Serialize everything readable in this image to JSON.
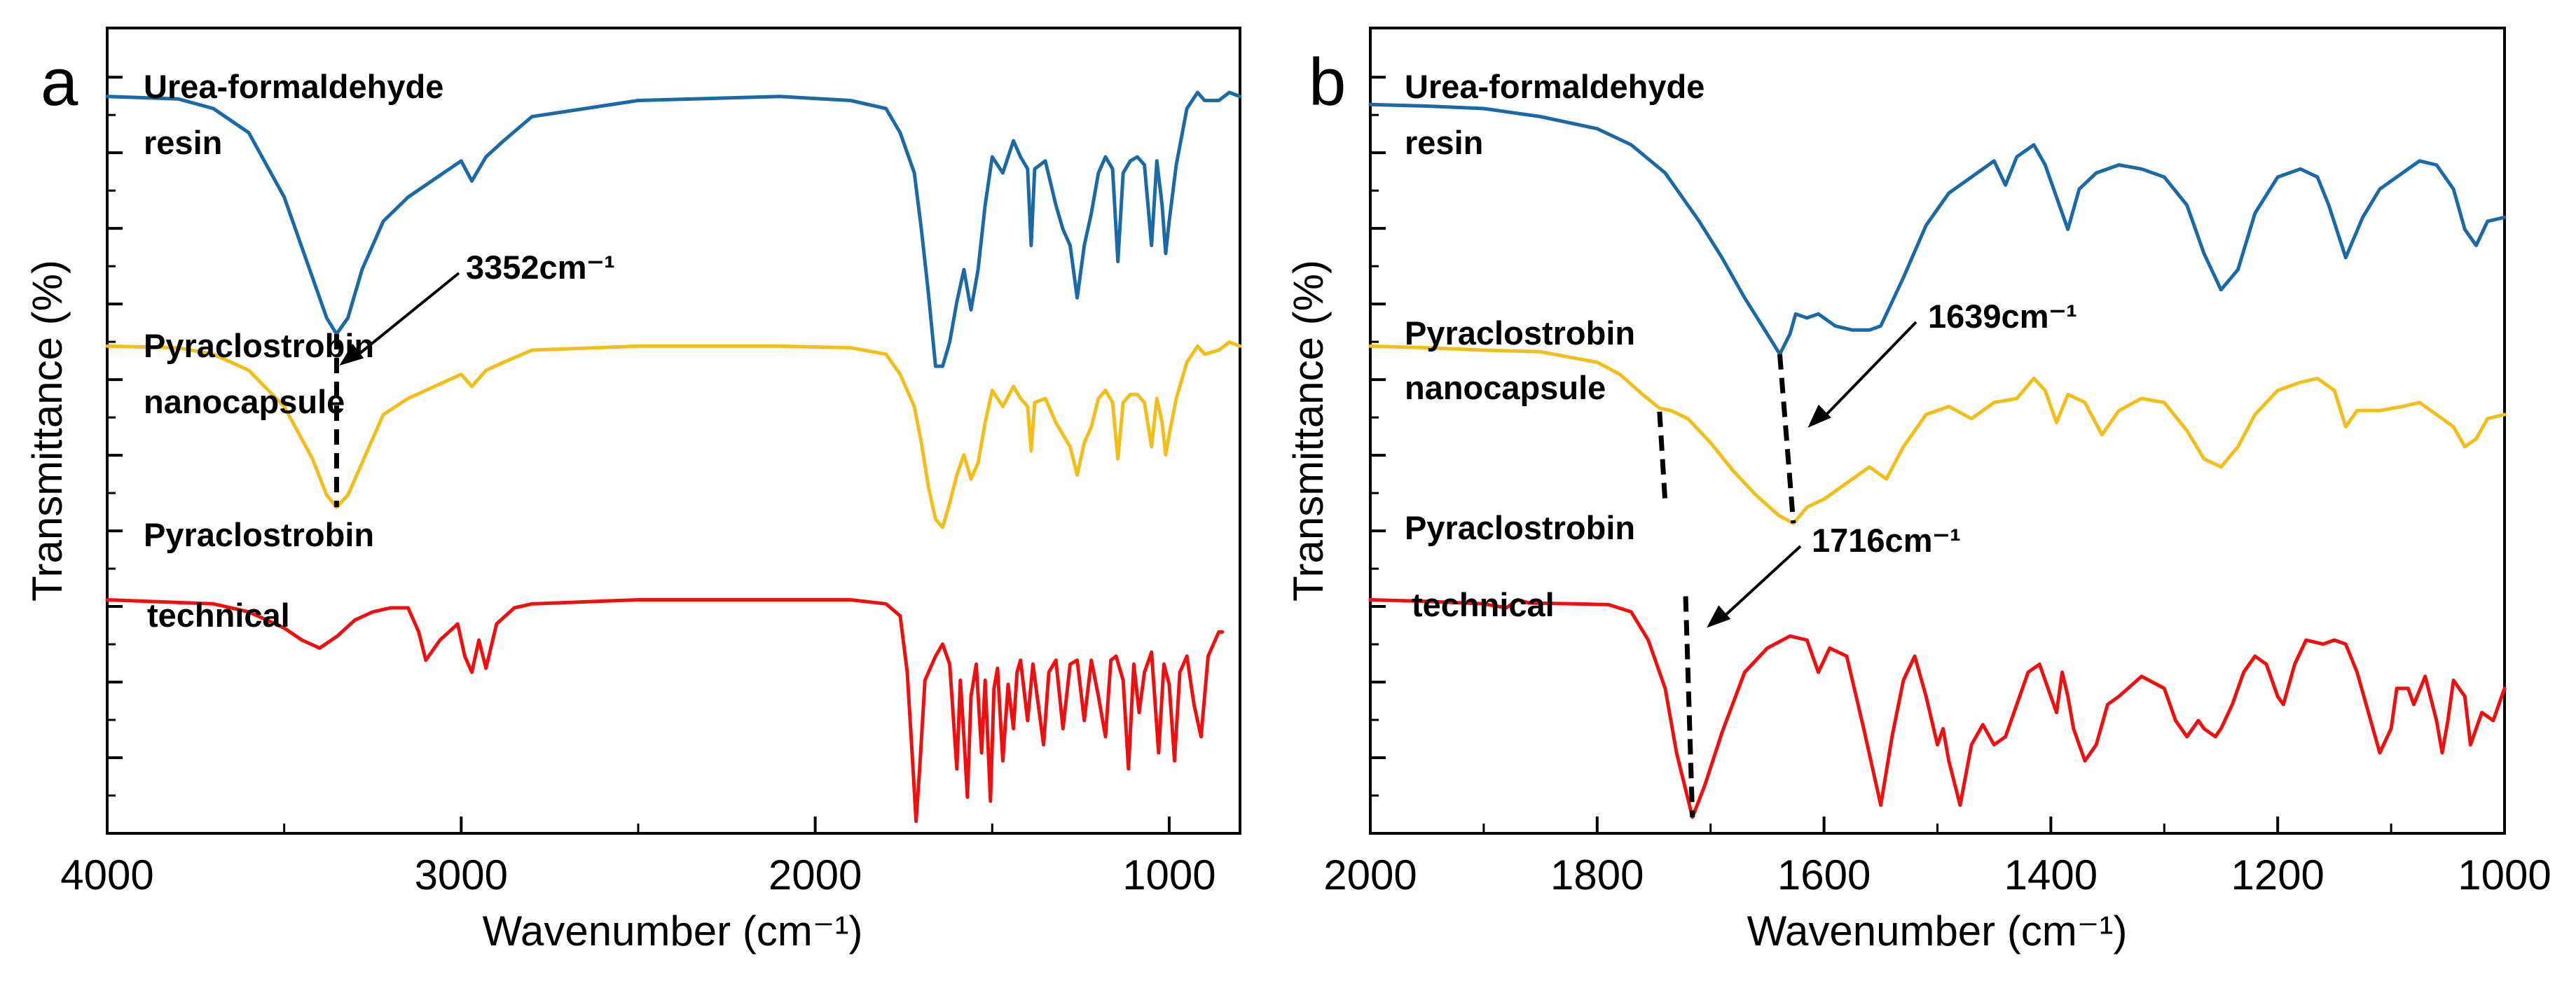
{
  "figure": {
    "panel_a_letter": "a",
    "panel_b_letter": "b"
  },
  "colors": {
    "urea": "#1b6aa5",
    "nanocapsule": "#f2bf1a",
    "technical": "#ee1010",
    "axis": "#000000"
  },
  "chart_data": [
    {
      "type": "line",
      "panel": "a",
      "xlabel": "Wavenumber (cm⁻¹)",
      "ylabel": "Transmittance (%)",
      "xlim": [
        4000,
        800
      ],
      "x_reversed": true,
      "xticks": [
        4000,
        3000,
        2000,
        1000
      ],
      "xtick_labels": [
        "4000",
        "3000",
        "2000",
        "1000"
      ],
      "ylim": [
        0,
        100
      ],
      "yticks_unlabeled": true,
      "series": [
        {
          "name": "Urea-formaldehyde resin",
          "label_lines": [
            "Urea-formaldehyde",
            "resin"
          ],
          "color": "#1b6aa5",
          "x": [
            4000,
            3800,
            3700,
            3600,
            3500,
            3420,
            3380,
            3352,
            3320,
            3280,
            3220,
            3150,
            3050,
            3000,
            2970,
            2930,
            2880,
            2800,
            2500,
            2100,
            1900,
            1800,
            1760,
            1720,
            1700,
            1680,
            1660,
            1640,
            1620,
            1600,
            1580,
            1560,
            1540,
            1520,
            1500,
            1470,
            1440,
            1420,
            1400,
            1390,
            1380,
            1350,
            1320,
            1300,
            1280,
            1260,
            1240,
            1220,
            1200,
            1180,
            1160,
            1145,
            1130,
            1110,
            1090,
            1070,
            1050,
            1035,
            1020,
            1010,
            1000,
            980,
            950,
            920,
            900,
            860,
            830,
            800
          ],
          "y": [
            91.5,
            91.2,
            90,
            87,
            79,
            69,
            64,
            62,
            64,
            70,
            76,
            79,
            82,
            83.5,
            81,
            84,
            86,
            89,
            91,
            91.5,
            91,
            90,
            87,
            82,
            75,
            67,
            58,
            58,
            61,
            66,
            70,
            65,
            70,
            78,
            84,
            82,
            86,
            84,
            82.5,
            73,
            82.5,
            83.5,
            78,
            75,
            73,
            66.5,
            73,
            77,
            82,
            84,
            82.5,
            71,
            82,
            83.5,
            84,
            83,
            73,
            83.5,
            78,
            72,
            76,
            83,
            90,
            92,
            91,
            91,
            92,
            91.5
          ]
        },
        {
          "name": "Pyraclostrobin nanocapsule",
          "label_lines": [
            "Pyraclostrobin",
            "nanocapsule"
          ],
          "color": "#f2bf1a",
          "x": [
            4000,
            3800,
            3700,
            3600,
            3500,
            3420,
            3380,
            3352,
            3320,
            3280,
            3220,
            3150,
            3050,
            3000,
            2970,
            2930,
            2880,
            2800,
            2500,
            2100,
            1900,
            1800,
            1760,
            1720,
            1700,
            1680,
            1660,
            1640,
            1620,
            1600,
            1580,
            1560,
            1540,
            1520,
            1500,
            1470,
            1440,
            1420,
            1400,
            1390,
            1380,
            1350,
            1320,
            1300,
            1280,
            1260,
            1240,
            1220,
            1200,
            1180,
            1160,
            1145,
            1130,
            1110,
            1090,
            1070,
            1050,
            1035,
            1020,
            1010,
            1000,
            980,
            950,
            920,
            900,
            860,
            830,
            800
          ],
          "y": [
            60.5,
            60.3,
            59.5,
            57.5,
            53,
            46.5,
            42,
            40.5,
            42,
            46,
            52,
            54,
            56,
            57,
            55.5,
            57.5,
            58.5,
            60,
            60.5,
            60.5,
            60.3,
            59.5,
            57,
            53,
            48.5,
            43,
            39,
            38,
            41,
            44.5,
            47,
            44,
            46,
            51,
            55,
            53,
            55.5,
            54,
            53,
            47.5,
            53.5,
            54,
            51,
            49.5,
            48,
            44.5,
            48.5,
            50.5,
            54,
            55,
            53.5,
            46.5,
            53.5,
            54.5,
            54.5,
            53.5,
            48,
            54,
            51,
            47,
            49.5,
            54,
            58.5,
            60.5,
            59.5,
            60,
            61,
            60.5
          ]
        },
        {
          "name": "Pyraclostrobin technical",
          "label_lines": [
            "Pyraclostrobin",
            "technical"
          ],
          "color": "#ee1010",
          "x": [
            4000,
            3700,
            3600,
            3500,
            3450,
            3400,
            3350,
            3300,
            3250,
            3200,
            3150,
            3120,
            3100,
            3060,
            3010,
            2990,
            2970,
            2950,
            2930,
            2900,
            2850,
            2800,
            2500,
            2200,
            1900,
            1800,
            1760,
            1740,
            1725,
            1715,
            1705,
            1690,
            1660,
            1640,
            1620,
            1600,
            1590,
            1580,
            1570,
            1560,
            1545,
            1530,
            1520,
            1505,
            1495,
            1485,
            1470,
            1455,
            1440,
            1430,
            1420,
            1400,
            1385,
            1370,
            1355,
            1340,
            1320,
            1300,
            1280,
            1260,
            1240,
            1220,
            1200,
            1180,
            1165,
            1150,
            1130,
            1115,
            1100,
            1085,
            1070,
            1050,
            1030,
            1015,
            1000,
            985,
            970,
            950,
            930,
            910,
            890,
            870,
            860,
            850
          ],
          "y": [
            29,
            28.5,
            27.5,
            25.5,
            24,
            23,
            24.5,
            26.5,
            27.5,
            28,
            28,
            25,
            21.5,
            24,
            26,
            22,
            20,
            24,
            20.5,
            26,
            28,
            28.5,
            29,
            29,
            29,
            28.5,
            27,
            20,
            9,
            1.5,
            8,
            19,
            22,
            23.5,
            21,
            8,
            19,
            12,
            4.5,
            17,
            21,
            10,
            19,
            4,
            18,
            20.5,
            9,
            18.5,
            13,
            20,
            21.5,
            14,
            21,
            16,
            11,
            20,
            21.5,
            13,
            21,
            21.5,
            14,
            21.5,
            17,
            12,
            21.5,
            22,
            19,
            8,
            21,
            15,
            20,
            22.5,
            10,
            21,
            18.5,
            9,
            20,
            22,
            16,
            12,
            22,
            24,
            25,
            25
          ]
        }
      ],
      "annotations": [
        {
          "text": "3352cm⁻¹",
          "x": 3352
        }
      ]
    },
    {
      "type": "line",
      "panel": "b",
      "xlabel": "Wavenumber (cm⁻¹)",
      "ylabel": "Transmittance (%)",
      "xlim": [
        2000,
        1000
      ],
      "x_reversed": true,
      "xticks": [
        2000,
        1800,
        1600,
        1400,
        1200,
        1000
      ],
      "xtick_labels": [
        "2000",
        "1800",
        "1600",
        "1400",
        "1200",
        "1000"
      ],
      "ylim": [
        0,
        100
      ],
      "yticks_unlabeled": true,
      "series": [
        {
          "name": "Urea-formaldehyde resin",
          "label_lines": [
            "Urea-formaldehyde",
            "resin"
          ],
          "color": "#1b6aa5",
          "x": [
            2000,
            1950,
            1900,
            1850,
            1800,
            1770,
            1740,
            1710,
            1690,
            1670,
            1650,
            1639,
            1630,
            1625,
            1615,
            1605,
            1590,
            1575,
            1560,
            1550,
            1530,
            1510,
            1490,
            1470,
            1450,
            1440,
            1430,
            1415,
            1405,
            1395,
            1385,
            1375,
            1360,
            1340,
            1320,
            1300,
            1280,
            1265,
            1250,
            1235,
            1220,
            1200,
            1180,
            1165,
            1155,
            1140,
            1125,
            1110,
            1090,
            1075,
            1060,
            1045,
            1035,
            1025,
            1015,
            1000
          ],
          "y": [
            90.5,
            90.3,
            90,
            89,
            87.5,
            85.5,
            82,
            76,
            71.5,
            66.5,
            62,
            59.5,
            62,
            64.5,
            64,
            64.5,
            63,
            62.5,
            62.5,
            63,
            69,
            75.5,
            79.5,
            81.5,
            83.5,
            80.5,
            84,
            85.5,
            83,
            79,
            75,
            80,
            82,
            83,
            82.5,
            81.5,
            78,
            72,
            67.5,
            70,
            77,
            81.5,
            82.5,
            81.5,
            78,
            71.5,
            76.5,
            80,
            82,
            83.5,
            83,
            80,
            75,
            73,
            76,
            76.5
          ]
        },
        {
          "name": "Pyraclostrobin nanocapsule",
          "label_lines": [
            "Pyraclostrobin",
            "nanocapsule"
          ],
          "color": "#f2bf1a",
          "x": [
            2000,
            1950,
            1900,
            1850,
            1800,
            1780,
            1760,
            1745,
            1735,
            1720,
            1700,
            1680,
            1660,
            1640,
            1627,
            1615,
            1600,
            1580,
            1560,
            1545,
            1530,
            1510,
            1490,
            1470,
            1450,
            1430,
            1415,
            1405,
            1395,
            1385,
            1370,
            1355,
            1340,
            1320,
            1300,
            1280,
            1265,
            1250,
            1235,
            1220,
            1200,
            1180,
            1165,
            1150,
            1140,
            1130,
            1110,
            1090,
            1075,
            1060,
            1045,
            1035,
            1025,
            1015,
            1000
          ],
          "y": [
            60.5,
            60.3,
            60,
            59.8,
            58.5,
            57,
            54.5,
            52.8,
            52.5,
            51.5,
            48.5,
            45,
            42,
            39.5,
            38.5,
            40.5,
            41.5,
            43.5,
            45.5,
            44,
            48,
            52,
            53,
            51.5,
            53.5,
            54,
            56.5,
            55,
            51,
            54.5,
            53.5,
            49.5,
            52.5,
            54,
            53.5,
            50,
            46.5,
            45.5,
            48,
            52,
            55,
            56,
            56.5,
            55,
            50.5,
            52.5,
            52.5,
            53,
            53.5,
            52,
            50.5,
            48,
            49,
            51.5,
            52
          ]
        },
        {
          "name": "Pyraclostrobin technical",
          "label_lines": [
            "Pyraclostrobin",
            "technical"
          ],
          "color": "#ee1010",
          "x": [
            2000,
            1950,
            1900,
            1880,
            1870,
            1860,
            1820,
            1790,
            1770,
            1755,
            1740,
            1730,
            1716,
            1705,
            1690,
            1670,
            1650,
            1630,
            1615,
            1605,
            1595,
            1580,
            1565,
            1550,
            1540,
            1530,
            1520,
            1510,
            1500,
            1495,
            1490,
            1480,
            1470,
            1460,
            1450,
            1440,
            1430,
            1420,
            1410,
            1400,
            1395,
            1390,
            1385,
            1380,
            1370,
            1360,
            1350,
            1340,
            1320,
            1300,
            1290,
            1280,
            1270,
            1265,
            1255,
            1250,
            1240,
            1230,
            1220,
            1210,
            1200,
            1195,
            1185,
            1175,
            1160,
            1150,
            1140,
            1130,
            1120,
            1110,
            1100,
            1095,
            1085,
            1080,
            1070,
            1060,
            1055,
            1050,
            1045,
            1035,
            1030,
            1020,
            1010,
            1005,
            1000
          ],
          "y": [
            29,
            28.8,
            28.5,
            28,
            29,
            28.6,
            28.5,
            28.4,
            27.5,
            24,
            18,
            10,
            2,
            6,
            12.5,
            20,
            23,
            24.5,
            24,
            20,
            23,
            22,
            13,
            3.5,
            12,
            19,
            22,
            17,
            11,
            13,
            9,
            3.5,
            11,
            13.5,
            11,
            12,
            16,
            20,
            21,
            17,
            15,
            20,
            17,
            13,
            9,
            11,
            16,
            17,
            19.5,
            18,
            14,
            12,
            14,
            13,
            12,
            13,
            16,
            20,
            22,
            21,
            17,
            16,
            21,
            24,
            23.5,
            24,
            23.5,
            20,
            15,
            10,
            13,
            18,
            18,
            16,
            19.5,
            14,
            10,
            14,
            19,
            17,
            11,
            15,
            14,
            16,
            18
          ]
        }
      ],
      "annotations": [
        {
          "text": "1639cm⁻¹",
          "x": 1639
        },
        {
          "text": "1716cm⁻¹",
          "x": 1716
        }
      ]
    }
  ]
}
